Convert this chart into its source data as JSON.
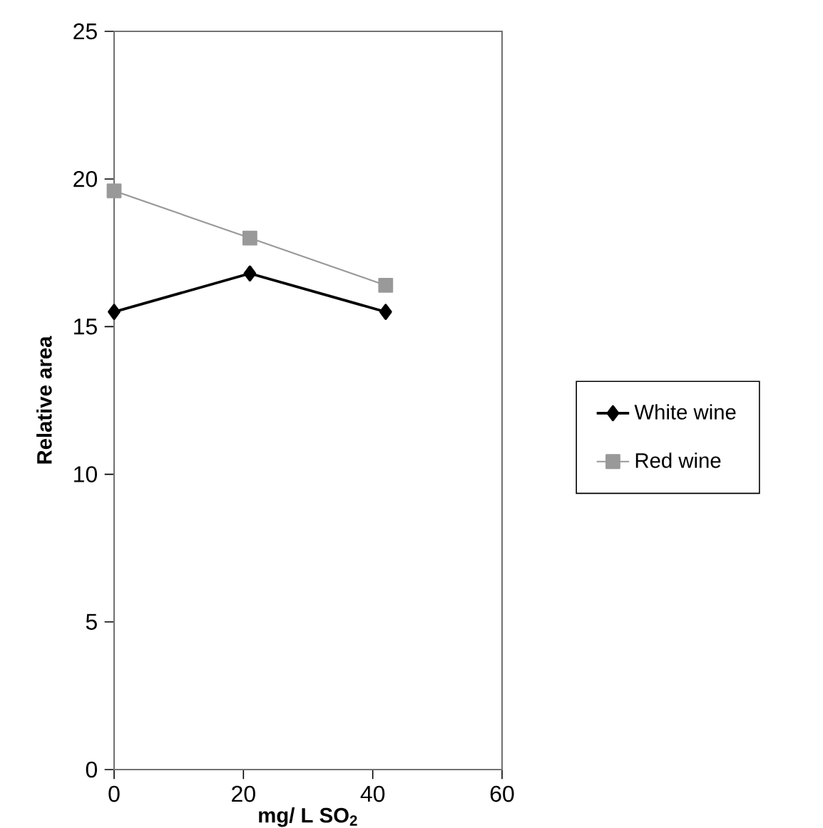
{
  "chart_data": {
    "type": "line",
    "xlabel": "mg/ L SO$_{2}$",
    "ylabel": "Relative area",
    "x": [
      0,
      21,
      42
    ],
    "series": [
      {
        "name": "White wine",
        "color": "#000000",
        "marker": "diamond",
        "values": [
          15.5,
          16.8,
          15.5
        ]
      },
      {
        "name": "Red wine",
        "color": "#999999",
        "marker": "square",
        "values": [
          19.6,
          18.0,
          16.4
        ]
      }
    ],
    "xlim": [
      0,
      60
    ],
    "xticks": [
      0,
      20,
      40,
      60
    ],
    "ylim": [
      0,
      25
    ],
    "yticks": [
      0,
      5,
      10,
      15,
      20,
      25
    ],
    "grid": false,
    "legend": "right"
  }
}
